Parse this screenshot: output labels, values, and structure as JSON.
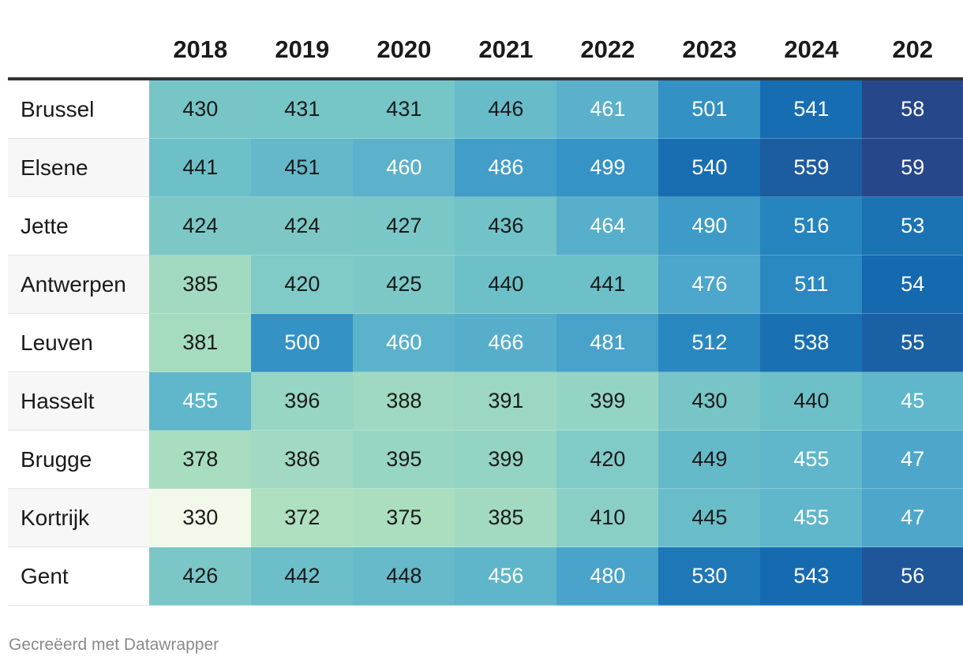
{
  "chart_data": {
    "type": "heatmap",
    "x": [
      "2018",
      "2019",
      "2020",
      "2021",
      "2022",
      "2023",
      "2024",
      "202"
    ],
    "rows": [
      {
        "name": "Brussel",
        "values": [
          "430",
          "431",
          "431",
          "446",
          "461",
          "501",
          "541",
          "58"
        ]
      },
      {
        "name": "Elsene",
        "values": [
          "441",
          "451",
          "460",
          "486",
          "499",
          "540",
          "559",
          "59"
        ]
      },
      {
        "name": "Jette",
        "values": [
          "424",
          "424",
          "427",
          "436",
          "464",
          "490",
          "516",
          "53"
        ]
      },
      {
        "name": "Antwerpen",
        "values": [
          "385",
          "420",
          "425",
          "440",
          "441",
          "476",
          "511",
          "54"
        ]
      },
      {
        "name": "Leuven",
        "values": [
          "381",
          "500",
          "460",
          "466",
          "481",
          "512",
          "538",
          "55"
        ]
      },
      {
        "name": "Hasselt",
        "values": [
          "455",
          "396",
          "388",
          "391",
          "399",
          "430",
          "440",
          "45"
        ]
      },
      {
        "name": "Brugge",
        "values": [
          "378",
          "386",
          "395",
          "399",
          "420",
          "449",
          "455",
          "47"
        ]
      },
      {
        "name": "Kortrijk",
        "values": [
          "330",
          "372",
          "375",
          "385",
          "410",
          "445",
          "455",
          "47"
        ]
      },
      {
        "name": "Gent",
        "values": [
          "426",
          "442",
          "448",
          "456",
          "480",
          "530",
          "543",
          "56"
        ]
      }
    ],
    "color_scale": {
      "stops": [
        "#f2f9ea",
        "#b4e2bd",
        "#92d3c5",
        "#70c2c8",
        "#50a9cc",
        "#2b8bc2",
        "#156aaf",
        "#26478a"
      ],
      "domain": [
        330,
        580
      ]
    },
    "text_dark": "#1a1a1a",
    "text_light": "#ffffff"
  },
  "footer": {
    "credit": "Gecreëerd met Datawrapper"
  }
}
